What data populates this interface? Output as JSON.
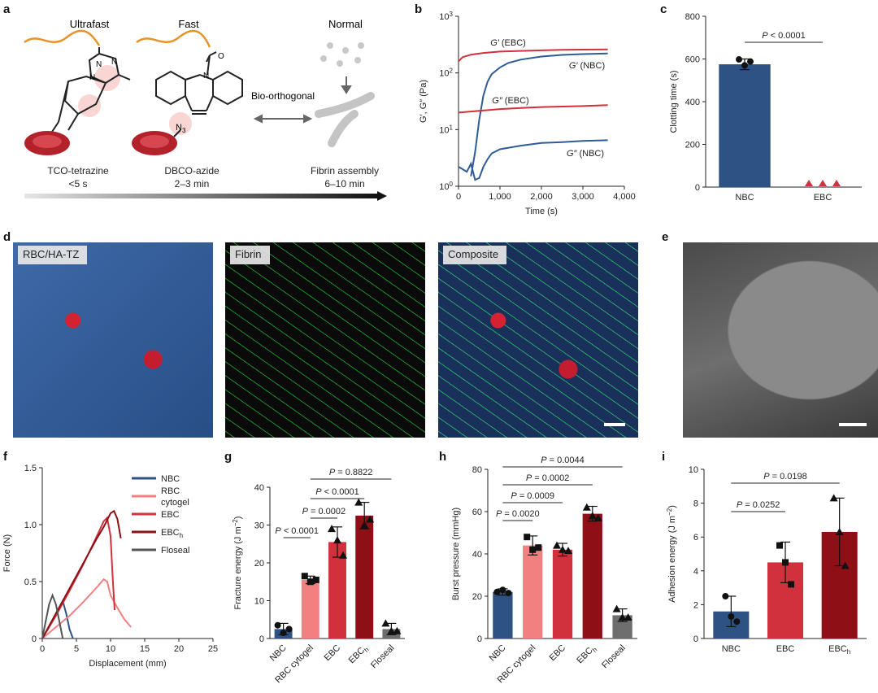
{
  "panel_letters": {
    "a": "a",
    "b": "b",
    "c": "c",
    "d": "d",
    "e": "e",
    "f": "f",
    "g": "g",
    "h": "h",
    "i": "i"
  },
  "panel_a": {
    "speed_labels": [
      "Ultrafast",
      "Fast",
      "Normal"
    ],
    "bio_orthogonal": "Bio-orthogonal",
    "azide_label": "N",
    "azide_sub": "3",
    "reactions": [
      {
        "name": "TCO-tetrazine",
        "time": "<5 s"
      },
      {
        "name": "DBCO-azide",
        "time": "2–3 min"
      },
      {
        "name": "Fibrin assembly",
        "time": "6–10 min"
      }
    ],
    "colors": {
      "polymer": "#E8922A",
      "rbc": "#C0282E",
      "fibrin": "#BDBDBD"
    }
  },
  "panel_d": {
    "labels": [
      "RBC/HA-TZ",
      "Fibrin",
      "Composite"
    ]
  },
  "chart_data": [
    {
      "panel": "b",
      "type": "line",
      "xlabel": "Time (s)",
      "ylabel": "G′, G″ (Pa)",
      "xlim": [
        0,
        4000
      ],
      "ylim": [
        1,
        1000
      ],
      "yscale": "log",
      "xticks": [
        "0",
        "1,000",
        "2,000",
        "3,000",
        "4,000"
      ],
      "yticks": [
        {
          "base": "10",
          "exp": "0"
        },
        {
          "base": "10",
          "exp": "1"
        },
        {
          "base": "10",
          "exp": "2"
        },
        {
          "base": "10",
          "exp": "3"
        }
      ],
      "series": [
        {
          "name": "G′ (EBC)",
          "color": "#D0313C",
          "x": [
            0,
            100,
            300,
            600,
            1000,
            1500,
            2000,
            2500,
            3000,
            3600
          ],
          "y": [
            160,
            190,
            210,
            225,
            238,
            245,
            250,
            255,
            258,
            260
          ]
        },
        {
          "name": "G′ (NBC)",
          "color": "#2E5C96",
          "x": [
            300,
            400,
            500,
            600,
            700,
            800,
            1000,
            1200,
            1500,
            2000,
            2500,
            3000,
            3600
          ],
          "y": [
            1.5,
            4,
            15,
            40,
            70,
            95,
            125,
            150,
            172,
            195,
            208,
            215,
            220
          ]
        },
        {
          "name": "G″ (EBC)",
          "color": "#D0313C",
          "x": [
            0,
            500,
            1000,
            1500,
            2000,
            2500,
            3000,
            3600
          ],
          "y": [
            20,
            21.5,
            23,
            24,
            25,
            25.5,
            26,
            27
          ]
        },
        {
          "name": "G″ (NBC)",
          "color": "#2E5C96",
          "x": [
            0,
            100,
            200,
            300,
            400,
            500,
            600,
            700,
            800,
            1000,
            1500,
            2000,
            2500,
            3000,
            3600
          ],
          "y": [
            2.2,
            2.0,
            1.8,
            2.5,
            1.3,
            1.4,
            2.2,
            3.0,
            3.8,
            4.5,
            5.2,
            5.8,
            6.0,
            6.3,
            6.5
          ]
        }
      ]
    },
    {
      "panel": "c",
      "type": "bar",
      "ylabel": "Clotting time (s)",
      "ylim": [
        0,
        800
      ],
      "yticks": [
        "0",
        "200",
        "400",
        "600",
        "800"
      ],
      "categories": [
        "NBC",
        "EBC"
      ],
      "values": [
        575,
        0
      ],
      "errors": [
        25,
        0
      ],
      "colors": [
        "#2E5283",
        "#D0313C"
      ],
      "points": [
        [
          598,
          570,
          588
        ],
        [
          0,
          0,
          0
        ]
      ],
      "significance": [
        {
          "from": 0,
          "to": 1,
          "label": "P < 0.0001"
        }
      ]
    },
    {
      "panel": "f",
      "type": "line",
      "xlabel": "Displacement (mm)",
      "ylabel": "Force (N)",
      "xlim": [
        0,
        25
      ],
      "ylim": [
        0,
        1.5
      ],
      "xticks": [
        "0",
        "5",
        "10",
        "15",
        "20",
        "25"
      ],
      "yticks": [
        "0",
        "0.5",
        "1.0",
        "1.5"
      ],
      "legend_position": "top-right",
      "series": [
        {
          "name": "NBC",
          "color": "#2E5283",
          "x": [
            0,
            1,
            2,
            3,
            3.5,
            4,
            4.5
          ],
          "y": [
            0,
            0.1,
            0.22,
            0.33,
            0.22,
            0.08,
            0.0
          ]
        },
        {
          "name": "RBC cytogel",
          "color": "#F28080",
          "x": [
            0,
            2,
            4,
            6,
            8,
            9,
            9.5,
            10,
            11,
            12,
            13
          ],
          "y": [
            0,
            0.1,
            0.2,
            0.32,
            0.45,
            0.52,
            0.5,
            0.38,
            0.27,
            0.17,
            0.1
          ]
        },
        {
          "name": "EBC",
          "color": "#D0313C",
          "x": [
            0,
            2,
            4,
            6,
            8,
            9,
            9.5,
            10,
            10.3,
            10.6
          ],
          "y": [
            0,
            0.2,
            0.42,
            0.65,
            0.9,
            1.03,
            1.06,
            0.9,
            0.55,
            0.25
          ]
        },
        {
          "name": "EBC",
          "name_sub": "h",
          "color": "#8E0F16",
          "x": [
            0,
            2,
            4,
            6,
            8,
            9,
            10,
            10.5,
            11,
            11.5
          ],
          "y": [
            0,
            0.22,
            0.44,
            0.66,
            0.88,
            0.98,
            1.1,
            1.12,
            1.05,
            0.88
          ]
        },
        {
          "name": "Floseal",
          "color": "#555555",
          "x": [
            0,
            0.5,
            1,
            1.5,
            2,
            2.5,
            3
          ],
          "y": [
            0,
            0.15,
            0.3,
            0.38,
            0.3,
            0.15,
            0.0
          ]
        }
      ]
    },
    {
      "panel": "g",
      "type": "bar",
      "ylabel": "Fracture energy (J m",
      "ylabel_sup": "−2",
      "ylabel_end": ")",
      "ylim": [
        0,
        40
      ],
      "yticks": [
        "0",
        "10",
        "20",
        "30",
        "40"
      ],
      "categories": [
        {
          "label": "NBC"
        },
        {
          "label": "RBC cytogel"
        },
        {
          "label": "EBC"
        },
        {
          "label": "EBC",
          "sub": "h"
        },
        {
          "label": "Floseal"
        }
      ],
      "values": [
        2.5,
        15.5,
        25.5,
        32.5,
        2.5
      ],
      "errors": [
        1.5,
        1.0,
        4.0,
        3.5,
        1.5
      ],
      "colors": [
        "#2E5283",
        "#F28080",
        "#D0313C",
        "#8E0F16",
        "#6E6E6E"
      ],
      "points": [
        [
          3.5,
          1.5,
          2.5
        ],
        [
          16.5,
          15,
          15.5
        ],
        [
          29,
          26,
          22
        ],
        [
          36,
          30,
          31.5
        ],
        [
          4,
          2,
          2
        ]
      ],
      "markers": [
        "circle",
        "square",
        "triangle",
        "triangle",
        "triangle"
      ],
      "significance": [
        {
          "from": 0,
          "to": 1,
          "label": "P < 0.0001",
          "level": 0
        },
        {
          "from": 1,
          "to": 2,
          "label": "P = 0.0002",
          "level": 1
        },
        {
          "from": 1,
          "to": 3,
          "label": "P < 0.0001",
          "level": 2
        },
        {
          "from": 1,
          "to": 4,
          "label": "P = 0.8822",
          "level": 3
        }
      ]
    },
    {
      "panel": "h",
      "type": "bar",
      "ylabel": "Burst pressure (mmHg)",
      "ylim": [
        0,
        80
      ],
      "yticks": [
        "0",
        "20",
        "40",
        "60",
        "80"
      ],
      "categories": [
        {
          "label": "NBC"
        },
        {
          "label": "RBC cytogel"
        },
        {
          "label": "EBC"
        },
        {
          "label": "EBC",
          "sub": "h"
        },
        {
          "label": "Floseal"
        }
      ],
      "values": [
        22,
        44,
        42,
        59,
        11
      ],
      "errors": [
        1.5,
        4.5,
        3.0,
        3.5,
        3.0
      ],
      "colors": [
        "#2E5283",
        "#F28080",
        "#D0313C",
        "#8E0F16",
        "#6E6E6E"
      ],
      "points": [
        [
          22,
          23,
          21.5
        ],
        [
          48,
          42,
          43
        ],
        [
          44,
          42,
          41.5
        ],
        [
          62,
          58,
          57
        ],
        [
          14,
          10,
          10
        ]
      ],
      "markers": [
        "circle",
        "square",
        "triangle",
        "triangle",
        "triangle"
      ],
      "significance": [
        {
          "from": 0,
          "to": 1,
          "label": "P = 0.0020",
          "level": 0
        },
        {
          "from": 0,
          "to": 2,
          "label": "P = 0.0009",
          "level": 1
        },
        {
          "from": 0,
          "to": 3,
          "label": "P = 0.0002",
          "level": 2
        },
        {
          "from": 0,
          "to": 4,
          "label": "P = 0.0044",
          "level": 3
        }
      ]
    },
    {
      "panel": "i",
      "type": "bar",
      "ylabel": "Adhesion energy (J m",
      "ylabel_sup": "−2",
      "ylabel_end": ")",
      "ylim": [
        0,
        10
      ],
      "yticks": [
        "0",
        "2",
        "4",
        "6",
        "8",
        "10"
      ],
      "categories": [
        {
          "label": "NBC"
        },
        {
          "label": "EBC"
        },
        {
          "label": "EBC",
          "sub": "h"
        }
      ],
      "values": [
        1.6,
        4.5,
        6.3
      ],
      "errors": [
        0.9,
        1.2,
        2.0
      ],
      "colors": [
        "#2E5283",
        "#D0313C",
        "#8E0F16"
      ],
      "points": [
        [
          2.5,
          1.3,
          1.0
        ],
        [
          5.5,
          4.5,
          3.2
        ],
        [
          8.3,
          6.3,
          4.3
        ]
      ],
      "markers": [
        "circle",
        "square",
        "triangle"
      ],
      "significance": [
        {
          "from": 0,
          "to": 1,
          "label": "P = 0.0252",
          "level": 0
        },
        {
          "from": 0,
          "to": 2,
          "label": "P = 0.0198",
          "level": 1
        }
      ]
    }
  ]
}
